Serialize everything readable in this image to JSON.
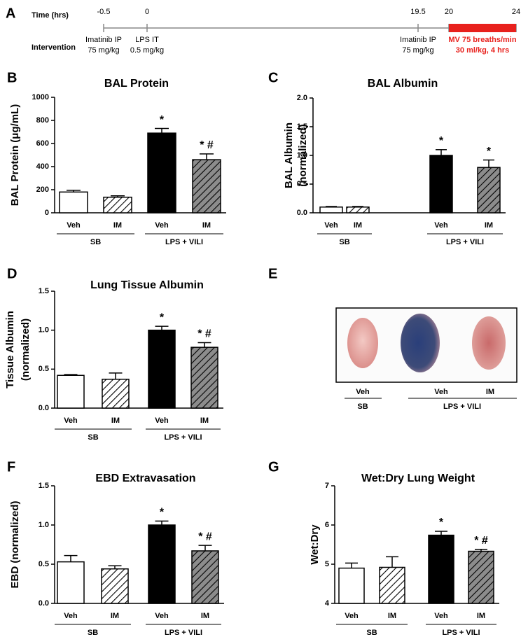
{
  "timeline": {
    "panel_label": "A",
    "time_label": "Time (hrs)",
    "intervention_label": "Intervention",
    "time_points": [
      -0.5,
      0,
      19.5,
      20,
      24
    ],
    "interventions": [
      {
        "lines": [
          "Imatinib IP",
          "75 mg/kg"
        ]
      },
      {
        "lines": [
          "LPS IT",
          "0.5 mg/kg"
        ]
      },
      {
        "lines": [
          "Imatinib IP",
          "75 mg/kg"
        ]
      },
      {
        "lines": [
          "MV 75 breaths/min",
          "30 ml/kg, 4 hrs"
        ],
        "color": "#e8211d"
      }
    ]
  },
  "image_panel": {
    "panel_label": "E",
    "categories": [
      "Veh",
      "Veh",
      "IM"
    ],
    "groups": [
      "SB",
      "LPS + VILI"
    ]
  },
  "chart_data": [
    {
      "type": "bar",
      "panel_label": "B",
      "title": "BAL Protein",
      "y_label": [
        "BAL Protein (μg/mL)"
      ],
      "categories": [
        "Veh",
        "IM",
        "Veh",
        "IM"
      ],
      "groups": [
        "SB",
        "LPS + VILI"
      ],
      "values": [
        180,
        135,
        690,
        460
      ],
      "errors": [
        15,
        12,
        40,
        50
      ],
      "annotations": [
        null,
        null,
        "*",
        "* #"
      ],
      "colors": [
        "#ffffff",
        "#ffffff",
        "#000000",
        "#8c8c8c"
      ],
      "hatch": [
        false,
        true,
        false,
        true
      ],
      "ylim": [
        0,
        1000
      ],
      "yticks": [
        0,
        200,
        400,
        600,
        800,
        1000
      ]
    },
    {
      "type": "bar",
      "panel_label": "C",
      "title": "BAL Albumin",
      "y_label": [
        "BAL Albumin",
        "(normalized)"
      ],
      "categories": [
        "Veh",
        "IM",
        "Veh",
        "IM"
      ],
      "groups": [
        "SB",
        "LPS + VILI"
      ],
      "values": [
        0.1,
        0.1,
        1.0,
        0.79
      ],
      "errors": [
        0.01,
        0.01,
        0.1,
        0.13
      ],
      "annotations": [
        null,
        null,
        "*",
        "*"
      ],
      "colors": [
        "#ffffff",
        "#ffffff",
        "#000000",
        "#8c8c8c"
      ],
      "hatch": [
        false,
        true,
        false,
        true
      ],
      "ylim": [
        0,
        2
      ],
      "yticks": [
        {
          "value": 0,
          "label": "0.0"
        },
        0.5,
        {
          "value": 1,
          "label": "1.0"
        },
        1.5,
        {
          "value": 2,
          "label": "2.0"
        }
      ]
    },
    {
      "type": "bar",
      "panel_label": "D",
      "title": "Lung Tissue Albumin",
      "y_label": [
        "Tissue Albumin",
        "(normalized)"
      ],
      "categories": [
        "Veh",
        "IM",
        "Veh",
        "IM"
      ],
      "groups": [
        "SB",
        "LPS + VILI"
      ],
      "values": [
        0.42,
        0.37,
        1.0,
        0.78
      ],
      "errors": [
        0.01,
        0.08,
        0.05,
        0.06
      ],
      "annotations": [
        null,
        null,
        "*",
        "* #"
      ],
      "colors": [
        "#ffffff",
        "#ffffff",
        "#000000",
        "#8c8c8c"
      ],
      "hatch": [
        false,
        true,
        false,
        true
      ],
      "ylim": [
        0,
        1.5
      ],
      "yticks": [
        {
          "value": 0,
          "label": "0.0"
        },
        0.5,
        {
          "value": 1,
          "label": "1.0"
        },
        1.5
      ]
    },
    {
      "type": "bar",
      "panel_label": "F",
      "title": "EBD Extravasation",
      "y_label": [
        "EBD (normalized)"
      ],
      "categories": [
        "Veh",
        "IM",
        "Veh",
        "IM"
      ],
      "groups": [
        "SB",
        "LPS + VILI"
      ],
      "values": [
        0.53,
        0.44,
        1.0,
        0.67
      ],
      "errors": [
        0.08,
        0.04,
        0.05,
        0.07
      ],
      "annotations": [
        null,
        null,
        "*",
        "* #"
      ],
      "colors": [
        "#ffffff",
        "#ffffff",
        "#000000",
        "#8c8c8c"
      ],
      "hatch": [
        false,
        true,
        false,
        true
      ],
      "ylim": [
        0,
        1.5
      ],
      "yticks": [
        {
          "value": 0,
          "label": "0.0"
        },
        0.5,
        {
          "value": 1,
          "label": "1.0"
        },
        1.5
      ]
    },
    {
      "type": "bar",
      "panel_label": "G",
      "title": "Wet:Dry Lung Weight",
      "y_label": [
        "Wet:Dry"
      ],
      "categories": [
        "Veh",
        "IM",
        "Veh",
        "IM"
      ],
      "groups": [
        "SB",
        "LPS + VILI"
      ],
      "values": [
        4.9,
        4.92,
        5.74,
        5.33
      ],
      "errors": [
        0.13,
        0.27,
        0.1,
        0.05
      ],
      "annotations": [
        null,
        null,
        "*",
        "* #"
      ],
      "colors": [
        "#ffffff",
        "#ffffff",
        "#000000",
        "#8c8c8c"
      ],
      "hatch": [
        false,
        true,
        false,
        true
      ],
      "ylim": [
        4,
        7
      ],
      "yticks": [
        4,
        5,
        6,
        7
      ]
    }
  ]
}
